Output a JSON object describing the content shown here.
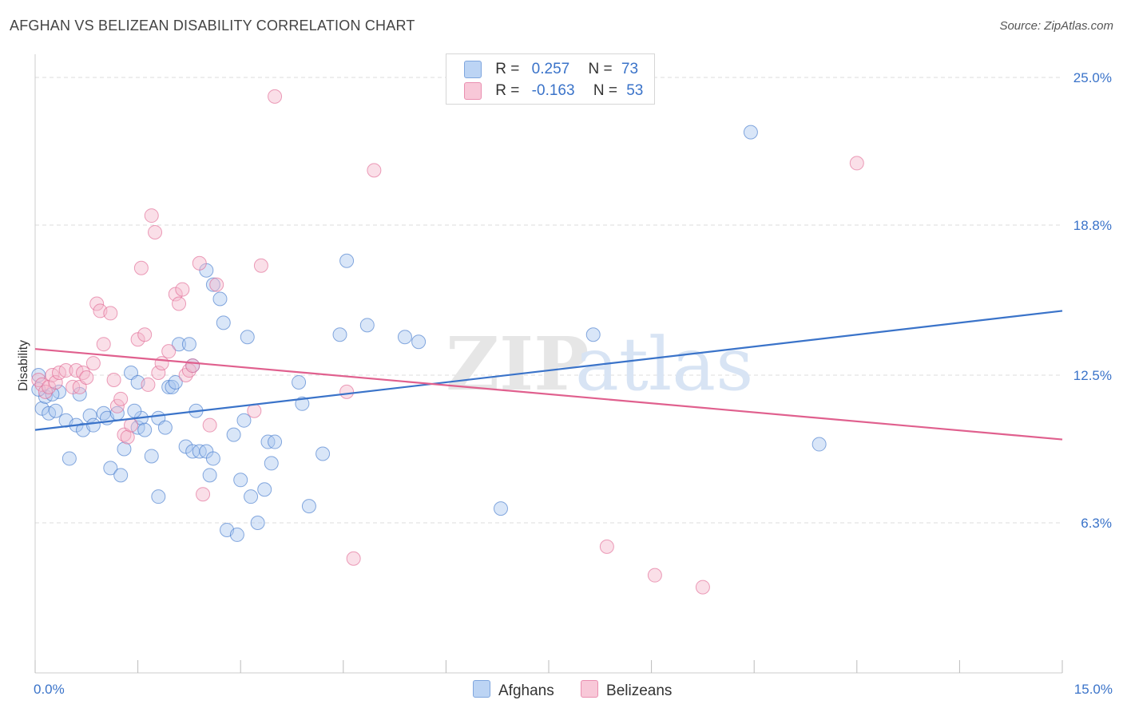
{
  "header": {
    "title": "AFGHAN VS BELIZEAN DISABILITY CORRELATION CHART",
    "source": "Source: ZipAtlas.com"
  },
  "colors": {
    "blue": "#3a73c9",
    "blue_fill": "#aac8f0",
    "pink": "#e0608e",
    "pink_fill": "#f5b8cc",
    "grid": "#dddddd"
  },
  "legend": {
    "rows": [
      {
        "r_label": "R =",
        "r_value": "0.257",
        "n_label": "N =",
        "n_value": "73"
      },
      {
        "r_label": "R =",
        "r_value": "-0.163",
        "n_label": "N =",
        "n_value": "53"
      }
    ]
  },
  "chart_data": {
    "type": "scatter",
    "title": "AFGHAN VS BELIZEAN DISABILITY CORRELATION CHART",
    "xlabel": "",
    "ylabel": "Disability",
    "xlim": [
      0,
      15
    ],
    "ylim": [
      0,
      26
    ],
    "x_tick_labels": [
      "0.0%",
      "15.0%"
    ],
    "y_ticks": [
      6.3,
      12.5,
      18.8,
      25.0
    ],
    "y_tick_labels": [
      "6.3%",
      "12.5%",
      "18.8%",
      "25.0%"
    ],
    "grid": "horizontal dashed",
    "legend_position": "top-center",
    "series": [
      {
        "name": "Afghans",
        "color": "#3a73c9",
        "trend": [
          [
            0,
            10.2
          ],
          [
            15,
            15.2
          ]
        ],
        "points": [
          [
            0.05,
            12.5
          ],
          [
            0.1,
            11.1
          ],
          [
            0.15,
            11.6
          ],
          [
            0.2,
            10.9
          ],
          [
            0.3,
            11.0
          ],
          [
            0.35,
            11.8
          ],
          [
            0.45,
            10.6
          ],
          [
            0.5,
            9.0
          ],
          [
            0.6,
            10.4
          ],
          [
            0.65,
            11.7
          ],
          [
            0.7,
            10.2
          ],
          [
            0.8,
            10.8
          ],
          [
            0.85,
            10.4
          ],
          [
            1.0,
            10.9
          ],
          [
            1.05,
            10.7
          ],
          [
            1.1,
            8.6
          ],
          [
            1.2,
            10.9
          ],
          [
            1.25,
            8.3
          ],
          [
            1.3,
            9.4
          ],
          [
            1.4,
            12.6
          ],
          [
            1.5,
            12.2
          ],
          [
            1.5,
            10.3
          ],
          [
            1.55,
            10.7
          ],
          [
            1.6,
            10.2
          ],
          [
            1.7,
            9.1
          ],
          [
            1.8,
            7.4
          ],
          [
            1.8,
            10.7
          ],
          [
            1.9,
            10.3
          ],
          [
            1.95,
            12.0
          ],
          [
            2.0,
            12.0
          ],
          [
            2.05,
            12.2
          ],
          [
            2.1,
            13.8
          ],
          [
            2.2,
            9.5
          ],
          [
            2.25,
            13.8
          ],
          [
            2.3,
            9.3
          ],
          [
            2.3,
            12.9
          ],
          [
            2.35,
            11.0
          ],
          [
            2.4,
            9.3
          ],
          [
            2.5,
            9.3
          ],
          [
            2.5,
            16.9
          ],
          [
            2.55,
            8.3
          ],
          [
            2.6,
            16.3
          ],
          [
            2.6,
            9.0
          ],
          [
            2.7,
            15.7
          ],
          [
            2.75,
            14.7
          ],
          [
            2.8,
            6.0
          ],
          [
            2.9,
            10.0
          ],
          [
            2.95,
            5.8
          ],
          [
            3.0,
            8.1
          ],
          [
            3.05,
            10.6
          ],
          [
            3.1,
            14.1
          ],
          [
            3.15,
            7.4
          ],
          [
            3.25,
            6.3
          ],
          [
            3.35,
            7.7
          ],
          [
            3.4,
            9.7
          ],
          [
            3.45,
            8.8
          ],
          [
            3.5,
            9.7
          ],
          [
            3.85,
            12.2
          ],
          [
            3.9,
            11.3
          ],
          [
            4.0,
            7.0
          ],
          [
            4.2,
            9.2
          ],
          [
            4.45,
            14.2
          ],
          [
            4.55,
            17.3
          ],
          [
            4.85,
            14.6
          ],
          [
            5.4,
            14.1
          ],
          [
            5.6,
            13.9
          ],
          [
            6.8,
            6.9
          ],
          [
            8.15,
            14.2
          ],
          [
            10.45,
            22.7
          ],
          [
            11.45,
            9.6
          ],
          [
            0.05,
            11.9
          ],
          [
            0.25,
            11.7
          ],
          [
            1.45,
            11.0
          ]
        ]
      },
      {
        "name": "Belizeans",
        "color": "#e0608e",
        "trend": [
          [
            0,
            13.6
          ],
          [
            15,
            9.8
          ]
        ],
        "points": [
          [
            0.05,
            12.3
          ],
          [
            0.1,
            12.1
          ],
          [
            0.15,
            11.8
          ],
          [
            0.2,
            12.0
          ],
          [
            0.25,
            12.5
          ],
          [
            0.3,
            12.2
          ],
          [
            0.35,
            12.6
          ],
          [
            0.45,
            12.7
          ],
          [
            0.55,
            12.0
          ],
          [
            0.6,
            12.7
          ],
          [
            0.65,
            12.0
          ],
          [
            0.7,
            12.6
          ],
          [
            0.75,
            12.4
          ],
          [
            0.85,
            13.0
          ],
          [
            0.9,
            15.5
          ],
          [
            0.95,
            15.2
          ],
          [
            1.0,
            13.8
          ],
          [
            1.1,
            15.1
          ],
          [
            1.15,
            12.3
          ],
          [
            1.2,
            11.2
          ],
          [
            1.25,
            11.5
          ],
          [
            1.3,
            10.0
          ],
          [
            1.35,
            9.9
          ],
          [
            1.4,
            10.4
          ],
          [
            1.5,
            14.0
          ],
          [
            1.55,
            17.0
          ],
          [
            1.6,
            14.2
          ],
          [
            1.65,
            12.1
          ],
          [
            1.7,
            19.2
          ],
          [
            1.75,
            18.5
          ],
          [
            1.8,
            12.6
          ],
          [
            1.85,
            13.0
          ],
          [
            1.95,
            13.5
          ],
          [
            2.05,
            15.9
          ],
          [
            2.1,
            15.5
          ],
          [
            2.15,
            16.1
          ],
          [
            2.2,
            12.5
          ],
          [
            2.25,
            12.7
          ],
          [
            2.3,
            12.9
          ],
          [
            2.4,
            17.2
          ],
          [
            2.45,
            7.5
          ],
          [
            2.55,
            10.4
          ],
          [
            2.65,
            16.3
          ],
          [
            3.2,
            11.0
          ],
          [
            3.3,
            17.1
          ],
          [
            3.5,
            24.2
          ],
          [
            4.55,
            11.8
          ],
          [
            4.65,
            4.8
          ],
          [
            4.95,
            21.1
          ],
          [
            8.35,
            5.3
          ],
          [
            9.05,
            4.1
          ],
          [
            9.75,
            3.6
          ],
          [
            12.0,
            21.4
          ]
        ]
      }
    ]
  },
  "bottom_legend": {
    "items": [
      {
        "label": "Afghans"
      },
      {
        "label": "Belizeans"
      }
    ]
  }
}
